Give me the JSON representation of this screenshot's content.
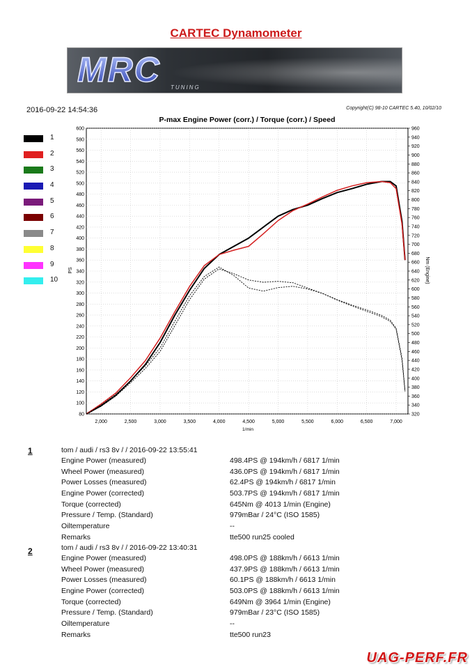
{
  "page": {
    "title": "CARTEC Dynamometer",
    "logo_text": "MRC",
    "logo_subtext": "TUNING",
    "datetime": "2016-09-22 14:54:36",
    "copyright": "Copyright(C) 98-10 CARTEC 5.40, 10/02/10",
    "footer_logo": "UAG-PERF.FR"
  },
  "legend": [
    {
      "label": "1",
      "color": "#000000"
    },
    {
      "label": "2",
      "color": "#e02020"
    },
    {
      "label": "3",
      "color": "#1a7a1a"
    },
    {
      "label": "4",
      "color": "#1a1ab4"
    },
    {
      "label": "5",
      "color": "#7a1a7a"
    },
    {
      "label": "6",
      "color": "#7a0000"
    },
    {
      "label": "7",
      "color": "#8a8a8a"
    },
    {
      "label": "8",
      "color": "#ffff33"
    },
    {
      "label": "9",
      "color": "#ff33ff"
    },
    {
      "label": "10",
      "color": "#33eeee"
    }
  ],
  "runs": [
    {
      "number": "1",
      "header": "tom / audi / rs3 8v /  / 2016-09-22 13:55:41",
      "rows": [
        {
          "label": "Engine Power (measured)",
          "value": "498.4PS @ 194km/h / 6817 1/min"
        },
        {
          "label": "Wheel Power (measured)",
          "value": "436.0PS @ 194km/h / 6817 1/min"
        },
        {
          "label": "Power Losses (measured)",
          "value": "62.4PS @ 194km/h / 6817 1/min"
        },
        {
          "label": "Engine Power (corrected)",
          "value": "503.7PS @ 194km/h / 6817 1/min"
        },
        {
          "label": "Torque (corrected)",
          "value": "645Nm @ 4013 1/min (Engine)"
        },
        {
          "label": "Pressure / Temp. (Standard)",
          "value": "979mBar / 24°C    (ISO 1585)"
        },
        {
          "label": "Oiltemperature",
          "value": "--"
        },
        {
          "label": "Remarks",
          "value": "tte500 run25 cooled"
        }
      ]
    },
    {
      "number": "2",
      "header": "tom / audi / rs3 8v /  / 2016-09-22 13:40:31",
      "rows": [
        {
          "label": "Engine Power (measured)",
          "value": "498.0PS @ 188km/h / 6613 1/min"
        },
        {
          "label": "Wheel Power (measured)",
          "value": "437.9PS @ 188km/h / 6613 1/min"
        },
        {
          "label": "Power Losses (measured)",
          "value": "60.1PS @ 188km/h / 6613 1/min"
        },
        {
          "label": "Engine Power (corrected)",
          "value": "503.0PS @ 188km/h / 6613 1/min"
        },
        {
          "label": "Torque (corrected)",
          "value": "649Nm @ 3964 1/min (Engine)"
        },
        {
          "label": "Pressure / Temp. (Standard)",
          "value": "979mBar / 23°C    (ISO 1585)"
        },
        {
          "label": "Oiltemperature",
          "value": "--"
        },
        {
          "label": "Remarks",
          "value": "tte500 run23"
        }
      ]
    }
  ],
  "chart_data": {
    "type": "line",
    "title": "P-max Engine Power (corr.) / Torque (corr.) / Speed",
    "xlabel": "1/min",
    "ylabel_left": "PS",
    "ylabel_right": "Nm (Engine)",
    "xlim": [
      1750,
      7200
    ],
    "ylim_left": [
      80,
      600
    ],
    "ylim_right": [
      320,
      960
    ],
    "x_ticks": [
      "2,000",
      "2,500",
      "3,000",
      "3,500",
      "4,000",
      "4,500",
      "5,000",
      "5,500",
      "6,000",
      "6,500",
      "7,000"
    ],
    "x_tick_values": [
      2000,
      2500,
      3000,
      3500,
      4000,
      4500,
      5000,
      5500,
      6000,
      6500,
      7000
    ],
    "y_left_ticks": [
      80,
      100,
      120,
      140,
      160,
      180,
      200,
      220,
      240,
      260,
      280,
      300,
      320,
      340,
      360,
      380,
      400,
      420,
      440,
      460,
      480,
      500,
      520,
      540,
      560,
      580,
      600
    ],
    "y_right_ticks": [
      320,
      340,
      360,
      380,
      400,
      420,
      440,
      460,
      480,
      500,
      520,
      540,
      560,
      580,
      600,
      620,
      640,
      660,
      680,
      700,
      720,
      740,
      760,
      780,
      800,
      820,
      840,
      860,
      880,
      900,
      920,
      940,
      960
    ],
    "grid": true,
    "series": [
      {
        "name": "1",
        "kind": "power",
        "axis": "left",
        "color": "#000000",
        "x": [
          1750,
          2000,
          2250,
          2500,
          2750,
          3000,
          3250,
          3500,
          3750,
          4000,
          4250,
          4500,
          4750,
          5000,
          5250,
          5500,
          5750,
          6000,
          6250,
          6500,
          6750,
          6900,
          7000,
          7100,
          7150
        ],
        "y": [
          80,
          95,
          114,
          140,
          170,
          210,
          260,
          305,
          345,
          370,
          385,
          400,
          420,
          440,
          452,
          460,
          472,
          483,
          490,
          498,
          503,
          503,
          495,
          430,
          360
        ]
      },
      {
        "name": "2",
        "kind": "power",
        "axis": "left",
        "color": "#d42020",
        "x": [
          1750,
          2000,
          2250,
          2500,
          2750,
          3000,
          3250,
          3500,
          3750,
          4000,
          4250,
          4500,
          4750,
          5000,
          5250,
          5500,
          5750,
          6000,
          6250,
          6500,
          6750,
          6900,
          7000,
          7100,
          7150
        ],
        "y": [
          80,
          98,
          118,
          146,
          177,
          218,
          266,
          312,
          350,
          370,
          378,
          385,
          408,
          432,
          450,
          462,
          475,
          487,
          495,
          501,
          503,
          501,
          490,
          425,
          360
        ]
      },
      {
        "name": "1",
        "kind": "torque",
        "axis": "right",
        "color": "#000000",
        "x": [
          1750,
          2000,
          2250,
          2500,
          2750,
          3000,
          3250,
          3500,
          3750,
          4000,
          4250,
          4500,
          4750,
          5000,
          5250,
          5500,
          5750,
          6000,
          6250,
          6500,
          6750,
          6900,
          7000,
          7100,
          7150
        ],
        "y": [
          320,
          337,
          360,
          390,
          422,
          460,
          518,
          576,
          622,
          645,
          634,
          620,
          615,
          617,
          614,
          602,
          590,
          575,
          562,
          550,
          538,
          527,
          510,
          440,
          370
        ]
      },
      {
        "name": "2",
        "kind": "torque",
        "axis": "right",
        "color": "#000000",
        "x": [
          1750,
          2000,
          2250,
          2500,
          2750,
          3000,
          3250,
          3500,
          3750,
          4000,
          4250,
          4500,
          4750,
          5000,
          5250,
          5500,
          5750,
          6000,
          6250,
          6500,
          6750,
          6900,
          7000,
          7100,
          7150
        ],
        "y": [
          320,
          340,
          364,
          394,
          428,
          468,
          528,
          585,
          628,
          649,
          630,
          602,
          595,
          603,
          606,
          600,
          590,
          576,
          564,
          553,
          541,
          530,
          512,
          445,
          372
        ]
      }
    ]
  }
}
